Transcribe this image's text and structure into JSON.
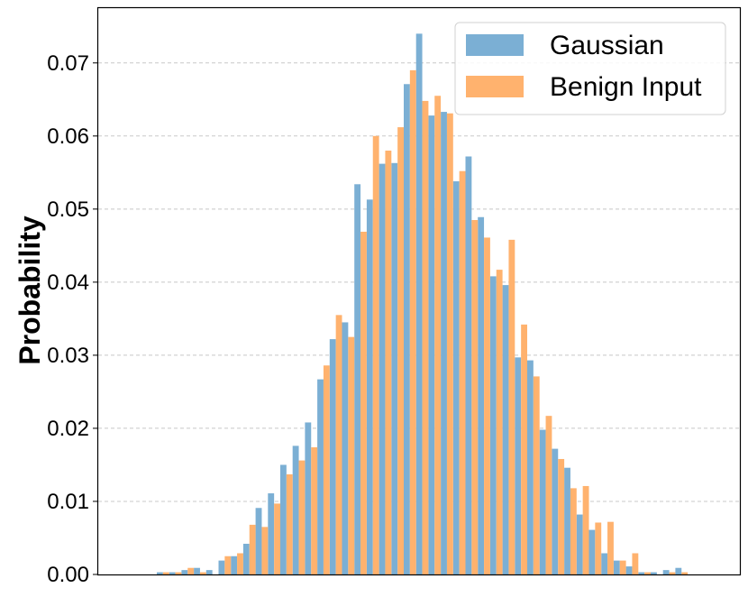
{
  "chart_data": {
    "type": "bar",
    "title": "",
    "xlabel": "",
    "ylabel": "Probability",
    "ylim": [
      0,
      0.0775
    ],
    "yticks": [
      "0.00",
      "0.01",
      "0.02",
      "0.03",
      "0.04",
      "0.05",
      "0.06",
      "0.07"
    ],
    "grid": "y-dashed",
    "legend_position": "top-right",
    "colors": {
      "Gaussian": "#7bafd4",
      "Benign Input": "#ffb26e"
    },
    "series": [
      {
        "name": "Gaussian",
        "values": [
          0.0003,
          0.0003,
          0.0006,
          0.0009,
          0.0006,
          0.0019,
          0.0025,
          0.0042,
          0.0091,
          0.0111,
          0.015,
          0.0176,
          0.0208,
          0.0267,
          0.0322,
          0.0345,
          0.0534,
          0.0513,
          0.0562,
          0.0563,
          0.0671,
          0.074,
          0.0628,
          0.0633,
          0.0538,
          0.0572,
          0.0489,
          0.0408,
          0.0396,
          0.0297,
          0.0293,
          0.0198,
          0.0172,
          0.0146,
          0.0082,
          0.0061,
          0.0029,
          0.0019,
          0.0011,
          0.0003,
          0.0003,
          0.0006,
          0.0009
        ]
      },
      {
        "name": "Benign Input",
        "values": [
          0.0003,
          0.0003,
          0.0009,
          0.0003,
          0,
          0.0025,
          0.0029,
          0.0068,
          0.0065,
          0.0097,
          0.0137,
          0.0156,
          0.0174,
          0.0286,
          0.0355,
          0.0325,
          0.0469,
          0.06,
          0.058,
          0.0612,
          0.069,
          0.0648,
          0.0655,
          0.0631,
          0.0552,
          0.0485,
          0.0461,
          0.0417,
          0.0458,
          0.0342,
          0.0271,
          0.0217,
          0.0158,
          0.0118,
          0.0121,
          0.0071,
          0.0072,
          0.0019,
          0.0029,
          0.0003,
          0,
          0.0003,
          0.0003
        ]
      }
    ]
  }
}
